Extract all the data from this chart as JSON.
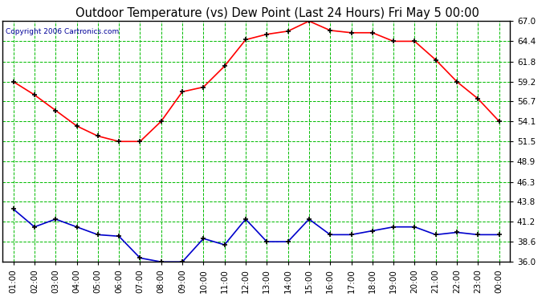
{
  "title": "Outdoor Temperature (vs) Dew Point (Last 24 Hours) Fri May 5 00:00",
  "copyright": "Copyright 2006 Cartronics.com",
  "x_labels": [
    "01:00",
    "02:00",
    "03:00",
    "04:00",
    "05:00",
    "06:00",
    "07:00",
    "08:00",
    "09:00",
    "10:00",
    "11:00",
    "12:00",
    "13:00",
    "14:00",
    "15:00",
    "16:00",
    "17:00",
    "18:00",
    "19:00",
    "20:00",
    "21:00",
    "22:00",
    "23:00",
    "00:00"
  ],
  "temp_values": [
    59.2,
    57.5,
    55.5,
    53.5,
    52.2,
    51.5,
    51.5,
    54.1,
    57.9,
    58.5,
    61.2,
    64.6,
    65.3,
    65.7,
    67.0,
    65.8,
    65.5,
    65.5,
    64.4,
    64.4,
    62.0,
    59.2,
    57.0,
    54.1
  ],
  "dew_values": [
    42.8,
    40.5,
    41.5,
    40.5,
    39.5,
    39.3,
    36.5,
    36.0,
    36.0,
    39.0,
    38.2,
    41.5,
    38.6,
    38.6,
    41.5,
    39.5,
    39.5,
    40.0,
    40.5,
    40.5,
    39.5,
    39.8,
    39.5,
    39.5
  ],
  "temp_color": "#ff0000",
  "dew_color": "#0000cc",
  "bg_color": "#ffffff",
  "plot_bg_color": "#ffffff",
  "grid_color": "#00bb00",
  "border_color": "#000000",
  "ylim_min": 36.0,
  "ylim_max": 67.0,
  "yticks": [
    36.0,
    38.6,
    41.2,
    43.8,
    46.3,
    48.9,
    51.5,
    54.1,
    56.7,
    59.2,
    61.8,
    64.4,
    67.0
  ],
  "title_fontsize": 10.5,
  "copyright_fontsize": 6.5,
  "tick_fontsize": 7.5,
  "marker": "+",
  "marker_size": 5,
  "marker_edge_width": 1.2,
  "line_width": 1.2
}
